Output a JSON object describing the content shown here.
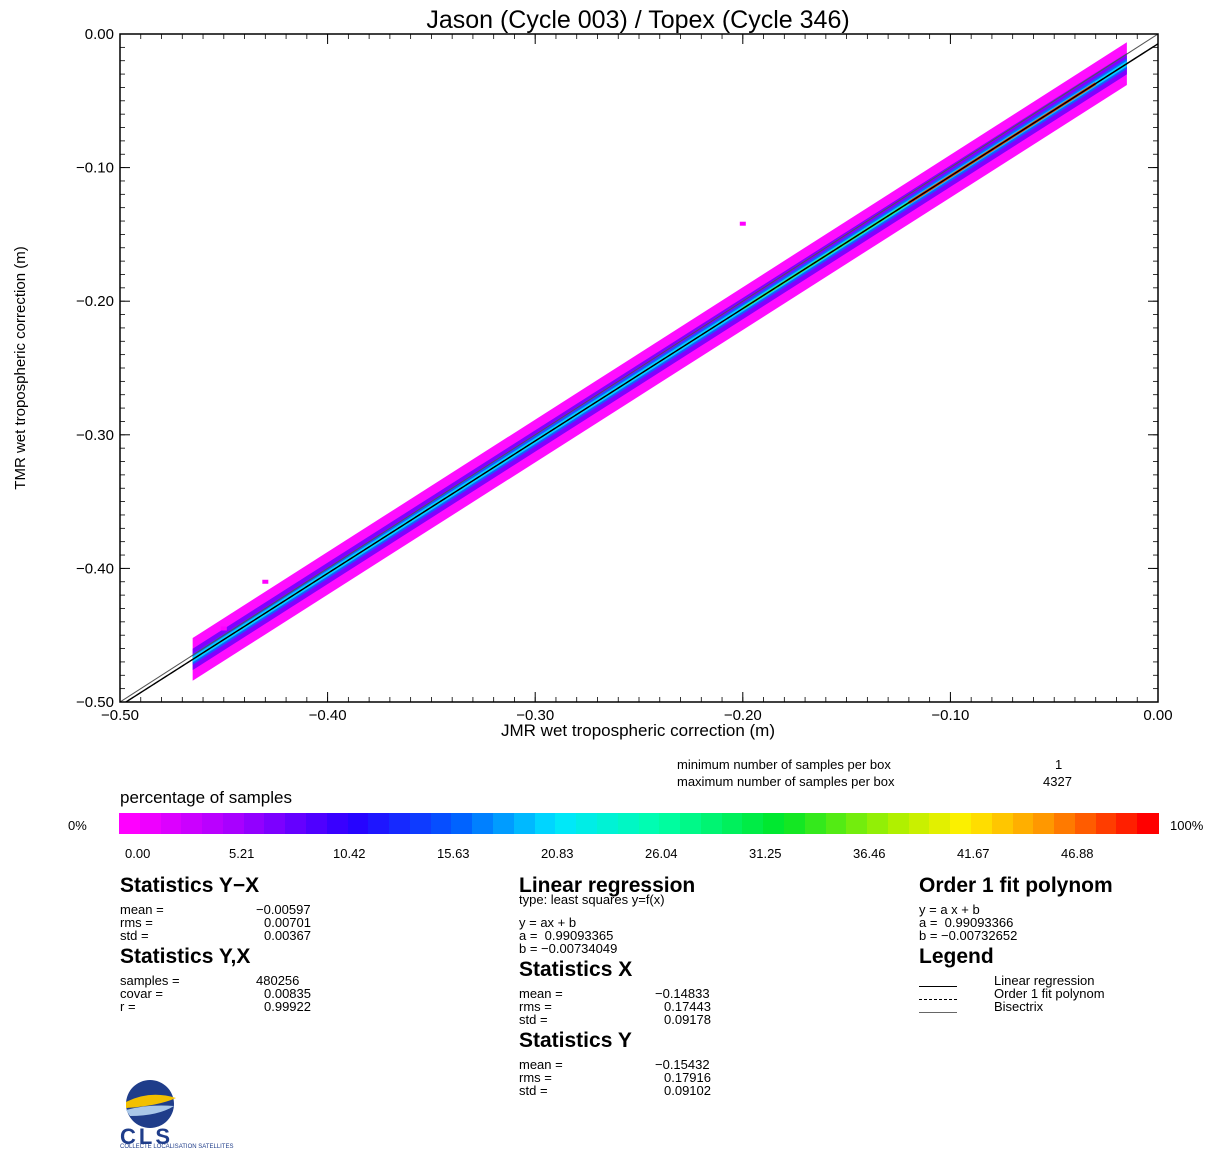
{
  "chart_data": {
    "type": "heatmap",
    "title": "Jason (Cycle 003) / Topex (Cycle 346)",
    "xlabel": "JMR wet tropospheric correction (m)",
    "ylabel": "TMR wet tropospheric correction (m)",
    "xlim": [
      -0.5,
      0.0
    ],
    "ylim": [
      -0.5,
      0.0
    ],
    "xticks": [
      "−0.50",
      "−0.40",
      "−0.30",
      "−0.20",
      "−0.10",
      "0.00"
    ],
    "yticks": [
      "−0.50",
      "−0.40",
      "−0.30",
      "−0.20",
      "−0.10",
      "0.00"
    ],
    "xtick_values": [
      -0.5,
      -0.4,
      -0.3,
      -0.2,
      -0.1,
      0.0
    ],
    "ytick_values": [
      -0.5,
      -0.4,
      -0.3,
      -0.2,
      -0.1,
      0.0
    ],
    "density_band": {
      "x_range": [
        -0.465,
        -0.015
      ],
      "slope": 0.99093365,
      "intercept": -0.00734049,
      "outliers": [
        [
          -0.2,
          -0.142
        ],
        [
          -0.45,
          -0.445
        ],
        [
          -0.43,
          -0.41
        ]
      ]
    },
    "lines": [
      {
        "name": "Linear regression",
        "style": "solid",
        "a": 0.99093365,
        "b": -0.00734049
      },
      {
        "name": "Order 1 fit polynom",
        "style": "dashed",
        "a": 0.99093366,
        "b": -0.00732652
      },
      {
        "name": "Bisectrix",
        "style": "thin",
        "a": 1.0,
        "b": 0.0
      }
    ]
  },
  "samples_info": {
    "min_label": "minimum number of samples per box",
    "min_value": "1",
    "max_label": "maximum number of samples per box",
    "max_value": "4327"
  },
  "colorbar": {
    "title": "percentage of samples",
    "left_label": "0%",
    "right_label": "100%",
    "ticks": [
      "0.00",
      "5.21",
      "10.42",
      "15.63",
      "20.83",
      "26.04",
      "31.25",
      "36.46",
      "41.67",
      "46.88"
    ]
  },
  "stats_yx": {
    "title": "Statistics Y−X",
    "labels": [
      "mean =",
      "rms =",
      "std ="
    ],
    "values": [
      "−0.00597",
      "0.00701",
      "0.00367"
    ]
  },
  "stats_y_x": {
    "title": "Statistics Y,X",
    "labels": [
      "samples =",
      "covar =",
      "r ="
    ],
    "values": [
      "480256",
      "0.00835",
      "0.99922"
    ]
  },
  "linear_regression": {
    "title": "Linear regression",
    "type": "type: least squares y=f(x)",
    "eq": "y = ax + b",
    "a": "a =  0.99093365",
    "b": "b = −0.00734049"
  },
  "stats_x": {
    "title": "Statistics X",
    "labels": [
      "mean =",
      "rms =",
      "std ="
    ],
    "values": [
      "−0.14833",
      "0.17443",
      "0.09178"
    ]
  },
  "stats_y": {
    "title": "Statistics Y",
    "labels": [
      "mean =",
      "rms =",
      "std ="
    ],
    "values": [
      "−0.15432",
      "0.17916",
      "0.09102"
    ]
  },
  "fit_polynom": {
    "title": "Order 1 fit polynom",
    "eq": "y = a x + b",
    "a": "a =  0.99093366",
    "b": "b = −0.00732652"
  },
  "legend": {
    "title": "Legend",
    "items": [
      "Linear regression",
      "Order 1 fit polynom",
      "Bisectrix"
    ]
  },
  "logo": {
    "text": "CLS",
    "tagline": "COLLECTE LOCALISATION SATELLITES",
    "colors": {
      "navy": "#1f3d8a",
      "gold": "#f2c000",
      "sky": "#a9c7e8"
    }
  }
}
